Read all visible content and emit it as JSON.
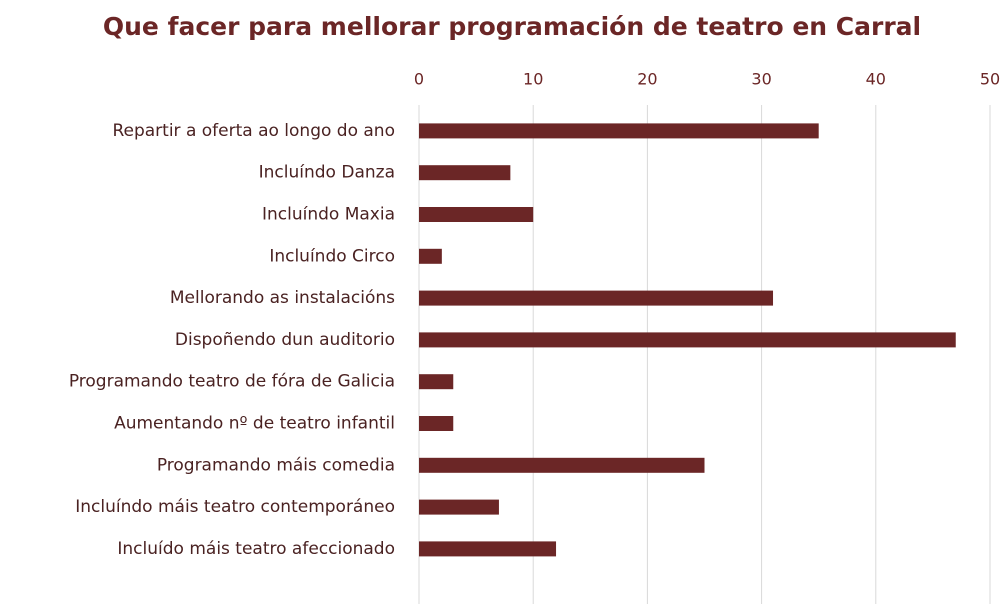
{
  "chart_data": {
    "type": "bar",
    "orientation": "horizontal",
    "title": "Que facer para mellorar programación de teatro en Carral",
    "categories": [
      "Repartir a oferta ao longo do ano",
      "Incluíndo Danza",
      "Incluíndo Maxia",
      "Incluíndo Circo",
      "Mellorando as instalacións",
      "Dispoñendo dun auditorio",
      "Programando teatro de fóra de Galicia",
      "Aumentando nº de teatro infantil",
      "Programando máis comedia",
      "Incluíndo máis teatro contemporáneo",
      "Incluído máis teatro afeccionado"
    ],
    "values": [
      35,
      8,
      10,
      2,
      31,
      47,
      3,
      3,
      25,
      7,
      12
    ],
    "color": "#6b2626",
    "xlim": [
      0,
      50
    ],
    "xticks": [
      0,
      10,
      20,
      30,
      40,
      50
    ],
    "grid": true
  }
}
